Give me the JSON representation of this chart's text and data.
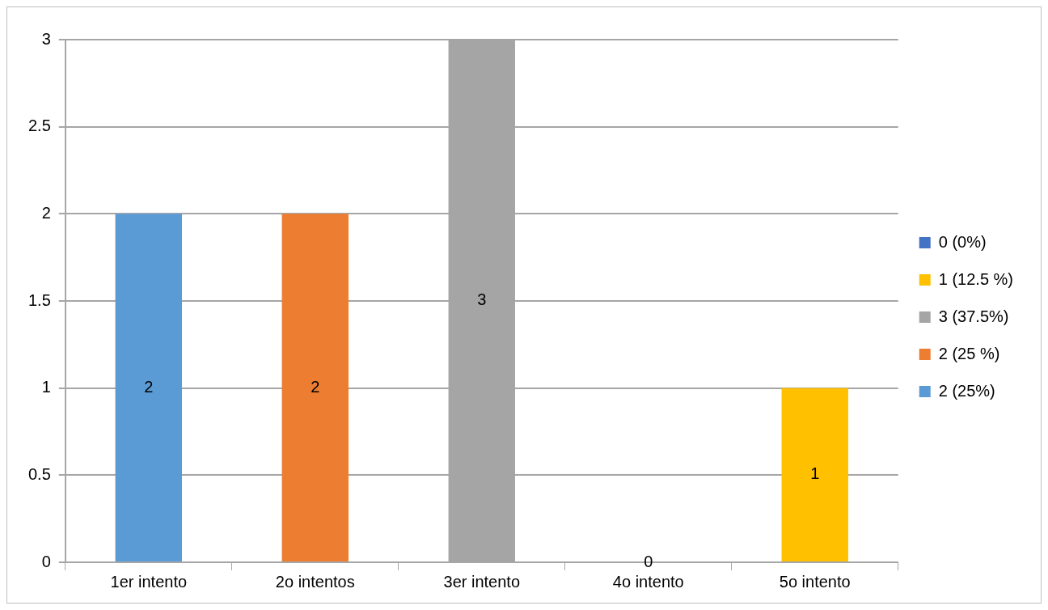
{
  "chart_data": {
    "type": "bar",
    "categories": [
      "1er intento",
      "2o intentos",
      "3er intento",
      "4o intento",
      "5o intento"
    ],
    "series": [
      {
        "name": "0 (0%)",
        "color": "#4472c4",
        "values": [
          null,
          null,
          null,
          0,
          null
        ]
      },
      {
        "name": "1 (12.5 %)",
        "color": "#ffc000",
        "values": [
          null,
          null,
          null,
          null,
          1
        ]
      },
      {
        "name": "3 (37.5%)",
        "color": "#a5a5a5",
        "values": [
          null,
          null,
          3,
          null,
          null
        ]
      },
      {
        "name": "2 (25 %)",
        "color": "#ed7d31",
        "values": [
          null,
          2,
          null,
          null,
          null
        ]
      },
      {
        "name": "2 (25%)",
        "color": "#5b9bd5",
        "values": [
          2,
          null,
          null,
          null,
          null
        ]
      }
    ],
    "ylim": [
      0,
      3
    ],
    "yticks": [
      0,
      0.5,
      1,
      1.5,
      2,
      2.5,
      3
    ],
    "grid": "y",
    "legend": "right",
    "data_labels": true
  }
}
